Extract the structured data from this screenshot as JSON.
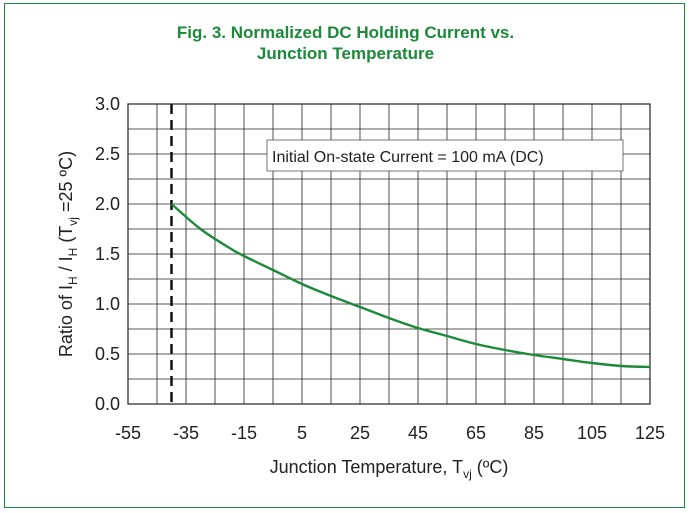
{
  "chart_data": {
    "type": "line",
    "title_line1": "Fig. 3. Normalized DC Holding Current vs.",
    "title_line2": "Junction Temperature",
    "annotation": "Initial On-state Current = 100 mA (DC)",
    "xlabel": {
      "main": "Junction Temperature, T",
      "sub": "vj",
      "tail": " (ºC)"
    },
    "ylabel": {
      "p1": "Ratio of I",
      "s1": "H",
      "p2": " / I",
      "s2": "H",
      "p3": " (T",
      "s3": "vj",
      "p4": " =25 ºC)"
    },
    "x_ticks": [
      "-55",
      "-35",
      "-15",
      "5",
      "25",
      "45",
      "65",
      "85",
      "105",
      "125"
    ],
    "y_ticks": [
      "0.0",
      "0.5",
      "1.0",
      "1.5",
      "2.0",
      "2.5",
      "3.0"
    ],
    "xlim": [
      -55,
      125
    ],
    "ylim": [
      0,
      3
    ],
    "grid": true,
    "reference_line_x": -40,
    "series": [
      {
        "color": "#1b8a3a",
        "x": [
          -40,
          -30,
          -20,
          -15,
          -5,
          5,
          15,
          25,
          35,
          45,
          55,
          65,
          75,
          85,
          95,
          105,
          115,
          125
        ],
        "y": [
          2.0,
          1.75,
          1.56,
          1.48,
          1.34,
          1.2,
          1.08,
          0.97,
          0.86,
          0.76,
          0.68,
          0.6,
          0.54,
          0.49,
          0.45,
          0.41,
          0.38,
          0.37
        ]
      }
    ]
  }
}
